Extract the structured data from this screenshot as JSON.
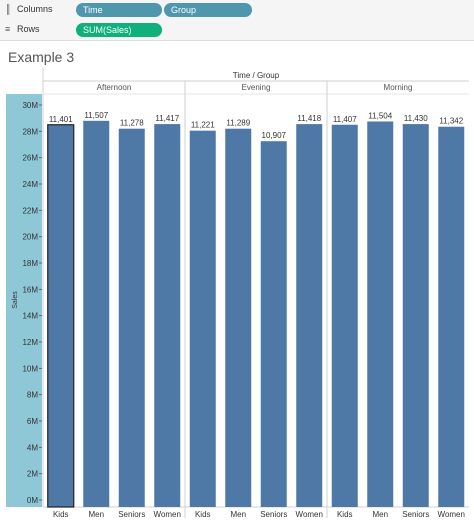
{
  "shelves": {
    "columns": {
      "icon": "columns-icon",
      "label": "Columns",
      "pills": [
        "Time",
        "Group"
      ]
    },
    "rows": {
      "icon": "rows-icon",
      "label": "Rows",
      "pills": [
        "SUM(Sales)"
      ]
    }
  },
  "sheet_title": "Example 3",
  "colors": {
    "bar": "#4e79a7",
    "axis_band": "#8ec8d6",
    "pill_dimension": "#4e97ad",
    "pill_measure": "#0fb07b"
  },
  "chart_data": {
    "type": "bar",
    "header_title": "Time / Group",
    "ylabel": "Sales",
    "ylim": [
      0,
      31000000
    ],
    "yticks": [
      0,
      2000000,
      4000000,
      6000000,
      8000000,
      10000000,
      12000000,
      14000000,
      16000000,
      18000000,
      20000000,
      22000000,
      24000000,
      26000000,
      28000000,
      30000000
    ],
    "ytick_labels": [
      "0M",
      "2M",
      "4M",
      "6M",
      "8M",
      "10M",
      "12M",
      "14M",
      "16M",
      "18M",
      "20M",
      "22M",
      "24M",
      "26M",
      "28M",
      "30M"
    ],
    "groups": [
      "Afternoon",
      "Evening",
      "Morning"
    ],
    "categories": [
      "Kids",
      "Men",
      "Seniors",
      "Women"
    ],
    "bars": [
      {
        "group": "Afternoon",
        "category": "Kids",
        "value": 28500000,
        "label": "11,401",
        "selected": true
      },
      {
        "group": "Afternoon",
        "category": "Men",
        "value": 28800000,
        "label": "11,507"
      },
      {
        "group": "Afternoon",
        "category": "Seniors",
        "value": 28200000,
        "label": "11,278"
      },
      {
        "group": "Afternoon",
        "category": "Women",
        "value": 28550000,
        "label": "11,417"
      },
      {
        "group": "Evening",
        "category": "Kids",
        "value": 28050000,
        "label": "11,221"
      },
      {
        "group": "Evening",
        "category": "Men",
        "value": 28200000,
        "label": "11,289"
      },
      {
        "group": "Evening",
        "category": "Seniors",
        "value": 27250000,
        "label": "10,907"
      },
      {
        "group": "Evening",
        "category": "Women",
        "value": 28550000,
        "label": "11,418"
      },
      {
        "group": "Morning",
        "category": "Kids",
        "value": 28500000,
        "label": "11,407"
      },
      {
        "group": "Morning",
        "category": "Men",
        "value": 28750000,
        "label": "11,504"
      },
      {
        "group": "Morning",
        "category": "Seniors",
        "value": 28550000,
        "label": "11,430"
      },
      {
        "group": "Morning",
        "category": "Women",
        "value": 28350000,
        "label": "11,342"
      }
    ]
  }
}
